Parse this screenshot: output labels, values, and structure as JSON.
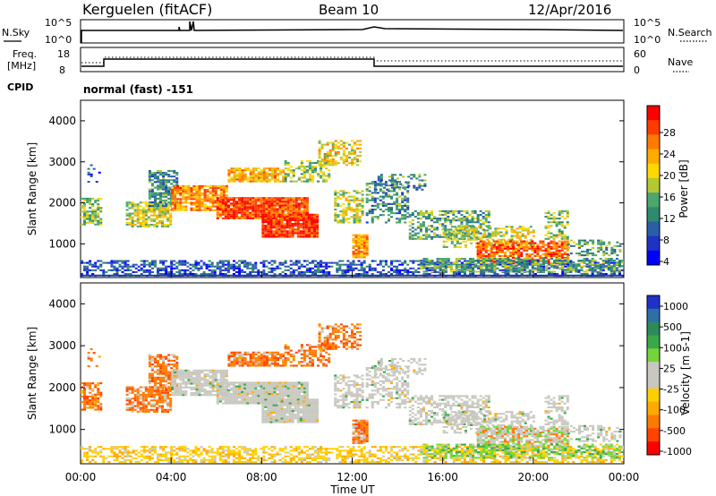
{
  "header": {
    "station": "Kerguelen (fitACF)",
    "beam": "Beam 10",
    "date": "12/Apr/2016"
  },
  "nsky_panel": {
    "left_label": "N.Sky",
    "right_label": "N.Search",
    "left_ticks": [
      "10^5",
      "10^0"
    ],
    "right_ticks": [
      "10^5",
      "10^0"
    ]
  },
  "freq_panel": {
    "left_label_1": "Freq.",
    "left_label_2": "[MHz]",
    "left_ticks": [
      "18",
      "8"
    ],
    "right_ticks": [
      "60",
      "0"
    ],
    "right_label": "Nave"
  },
  "cpid": {
    "label": "CPID",
    "text": "normal (fast) -151"
  },
  "chart_data": [
    {
      "type": "heatmap",
      "name": "power",
      "ylabel": "Slant Range [km]",
      "ylim": [
        180,
        4500
      ],
      "yticks": [
        "4000",
        "3000",
        "2000",
        "1000"
      ],
      "colorbar": {
        "label": "Power [dB]",
        "ticks": [
          "28",
          "24",
          "20",
          "16",
          "12",
          "8",
          "4"
        ],
        "colors": [
          "#ff0000",
          "#ff3c00",
          "#ff7a00",
          "#ffaa00",
          "#ffd800",
          "#b4c832",
          "#4ca66e",
          "#2f8a6e",
          "#2a5fa8",
          "#1e32c8",
          "#0000ff"
        ]
      }
    },
    {
      "type": "heatmap",
      "name": "velocity",
      "ylabel": "Slant Range [km]",
      "ylim": [
        180,
        4500
      ],
      "yticks": [
        "4000",
        "3000",
        "2000",
        "1000"
      ],
      "xlabel": "Time UT",
      "xticks": [
        "00:00",
        "04:00",
        "08:00",
        "12:00",
        "16:00",
        "20:00",
        "00:00"
      ],
      "colorbar": {
        "label": "Velocity [m s-1]",
        "ticks": [
          "1000",
          "500",
          "100",
          "25",
          "-25",
          "-100",
          "-500",
          "-1000"
        ],
        "colors": [
          "#1e32c8",
          "#2f6fa8",
          "#2f8a5a",
          "#3aa84a",
          "#74d43a",
          "#c8c8c0",
          "#c8c8c0",
          "#ffd000",
          "#ffaa00",
          "#ff7a00",
          "#ff4400",
          "#ff0000"
        ]
      }
    }
  ]
}
